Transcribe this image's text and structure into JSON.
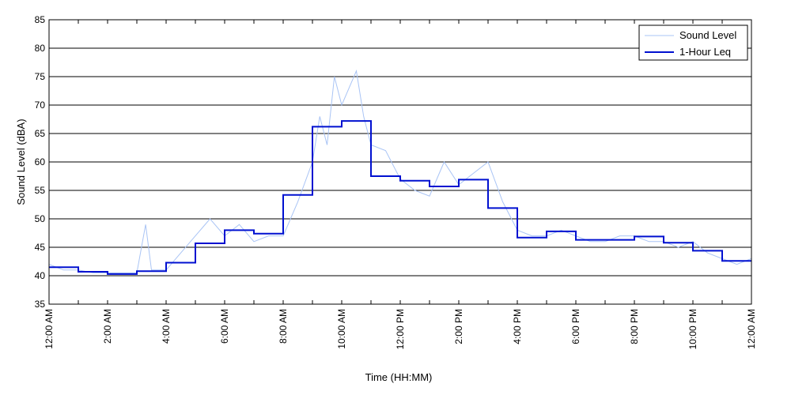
{
  "chart_data": {
    "type": "line",
    "xlabel": "Time (HH:MM)",
    "ylabel": "Sound Level (dBA)",
    "x_range_hours": [
      0,
      24
    ],
    "ylim": [
      35,
      85
    ],
    "y_ticks": [
      35,
      40,
      45,
      50,
      55,
      60,
      65,
      70,
      75,
      80,
      85
    ],
    "grid": "horizontal",
    "legend_position": "top-right",
    "x_ticks": [
      {
        "hour": 0,
        "label": "12:00 AM"
      },
      {
        "hour": 2,
        "label": "2:00 AM"
      },
      {
        "hour": 4,
        "label": "4:00 AM"
      },
      {
        "hour": 6,
        "label": "6:00 AM"
      },
      {
        "hour": 8,
        "label": "8:00 AM"
      },
      {
        "hour": 10,
        "label": "10:00 AM"
      },
      {
        "hour": 12,
        "label": "12:00 PM"
      },
      {
        "hour": 14,
        "label": "2:00 PM"
      },
      {
        "hour": 16,
        "label": "4:00 PM"
      },
      {
        "hour": 18,
        "label": "6:00 PM"
      },
      {
        "hour": 20,
        "label": "8:00 PM"
      },
      {
        "hour": 22,
        "label": "10:00 PM"
      },
      {
        "hour": 24,
        "label": "12:00 AM"
      }
    ],
    "series": [
      {
        "name": "Sound Level",
        "color": "#a9c4f5",
        "x": [
          0,
          0.5,
          1,
          1.5,
          2,
          2.5,
          3,
          3.3,
          3.5,
          4,
          4.5,
          5,
          5.5,
          6,
          6.5,
          7,
          7.5,
          8,
          8.5,
          9,
          9.25,
          9.5,
          9.75,
          10,
          10.25,
          10.5,
          10.75,
          11,
          11.5,
          12,
          12.5,
          13,
          13.5,
          14,
          14.5,
          15,
          15.5,
          16,
          16.5,
          17,
          17.5,
          18,
          18.5,
          19,
          19.5,
          20,
          20.5,
          21,
          21.5,
          22,
          22.5,
          23,
          23.5,
          24
        ],
        "values": [
          42,
          41,
          41,
          40.5,
          40.5,
          40.5,
          40.5,
          49,
          41,
          41,
          44,
          47,
          50,
          47,
          49,
          46,
          47,
          47,
          53,
          60,
          68,
          63,
          75,
          70,
          73,
          76,
          68,
          63,
          62,
          57,
          55,
          54,
          60,
          56,
          58,
          60,
          53,
          48,
          47,
          47,
          48,
          47,
          46,
          46,
          47,
          47,
          46,
          46,
          45,
          46,
          44,
          43,
          42,
          43
        ]
      },
      {
        "name": "1-Hour Leq",
        "color": "#0010d0",
        "x": [
          0,
          1,
          2,
          3,
          4,
          5,
          6,
          7,
          8,
          9,
          10,
          11,
          12,
          13,
          14,
          15,
          16,
          17,
          18,
          19,
          20,
          21,
          22,
          23,
          24
        ],
        "values": [
          41.5,
          40.7,
          40.3,
          40.8,
          42.3,
          45.7,
          48,
          47.4,
          54.2,
          66.2,
          67.2,
          57.5,
          56.7,
          55.7,
          56.9,
          51.9,
          46.7,
          47.8,
          46.3,
          46.3,
          46.9,
          45.8,
          44.4,
          42.6,
          42.6
        ]
      }
    ]
  }
}
